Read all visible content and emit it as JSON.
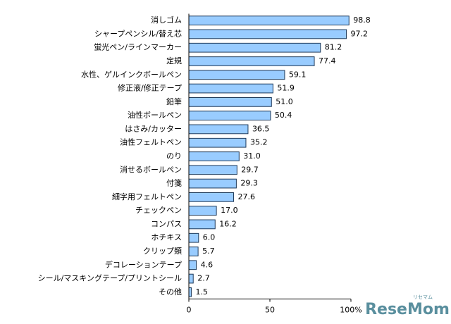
{
  "chart_data": {
    "type": "hbar",
    "categories": [
      "消しゴム",
      "シャープペンシル/替え芯",
      "蛍光ペン/ラインマーカー",
      "定規",
      "水性、ゲルインクボールペン",
      "修正液/修正テープ",
      "鉛筆",
      "油性ボールペン",
      "はさみ/カッター",
      "油性フェルトペン",
      "のり",
      "消せるボールペン",
      "付箋",
      "細字用フェルトペン",
      "チェックペン",
      "コンパス",
      "ホチキス",
      "クリップ類",
      "デコレーションテープ",
      "シール/マスキングテープ/プリントシール",
      "その他"
    ],
    "values": [
      98.8,
      97.2,
      81.2,
      77.4,
      59.1,
      51.9,
      51.0,
      50.4,
      36.5,
      35.2,
      31.0,
      29.7,
      29.3,
      27.6,
      17.0,
      16.2,
      6.0,
      5.7,
      4.6,
      2.7,
      1.5
    ],
    "value_labels": [
      "98.8",
      "97.2",
      "81.2",
      "77.4",
      "59.1",
      "51.9",
      "51.0",
      "50.4",
      "36.5",
      "35.2",
      "31.0",
      "29.7",
      "29.3",
      "27.6",
      "17.0",
      "16.2",
      "6.0",
      "5.7",
      "4.6",
      "2.7",
      "1.5"
    ],
    "color": "#99ccff",
    "xlim": [
      0,
      100
    ],
    "xticks": [
      0,
      50,
      {
        "value": 100,
        "label": "100%"
      }
    ],
    "grid": false
  },
  "watermark": "ReseMom",
  "watermark_sub": "リセマム"
}
